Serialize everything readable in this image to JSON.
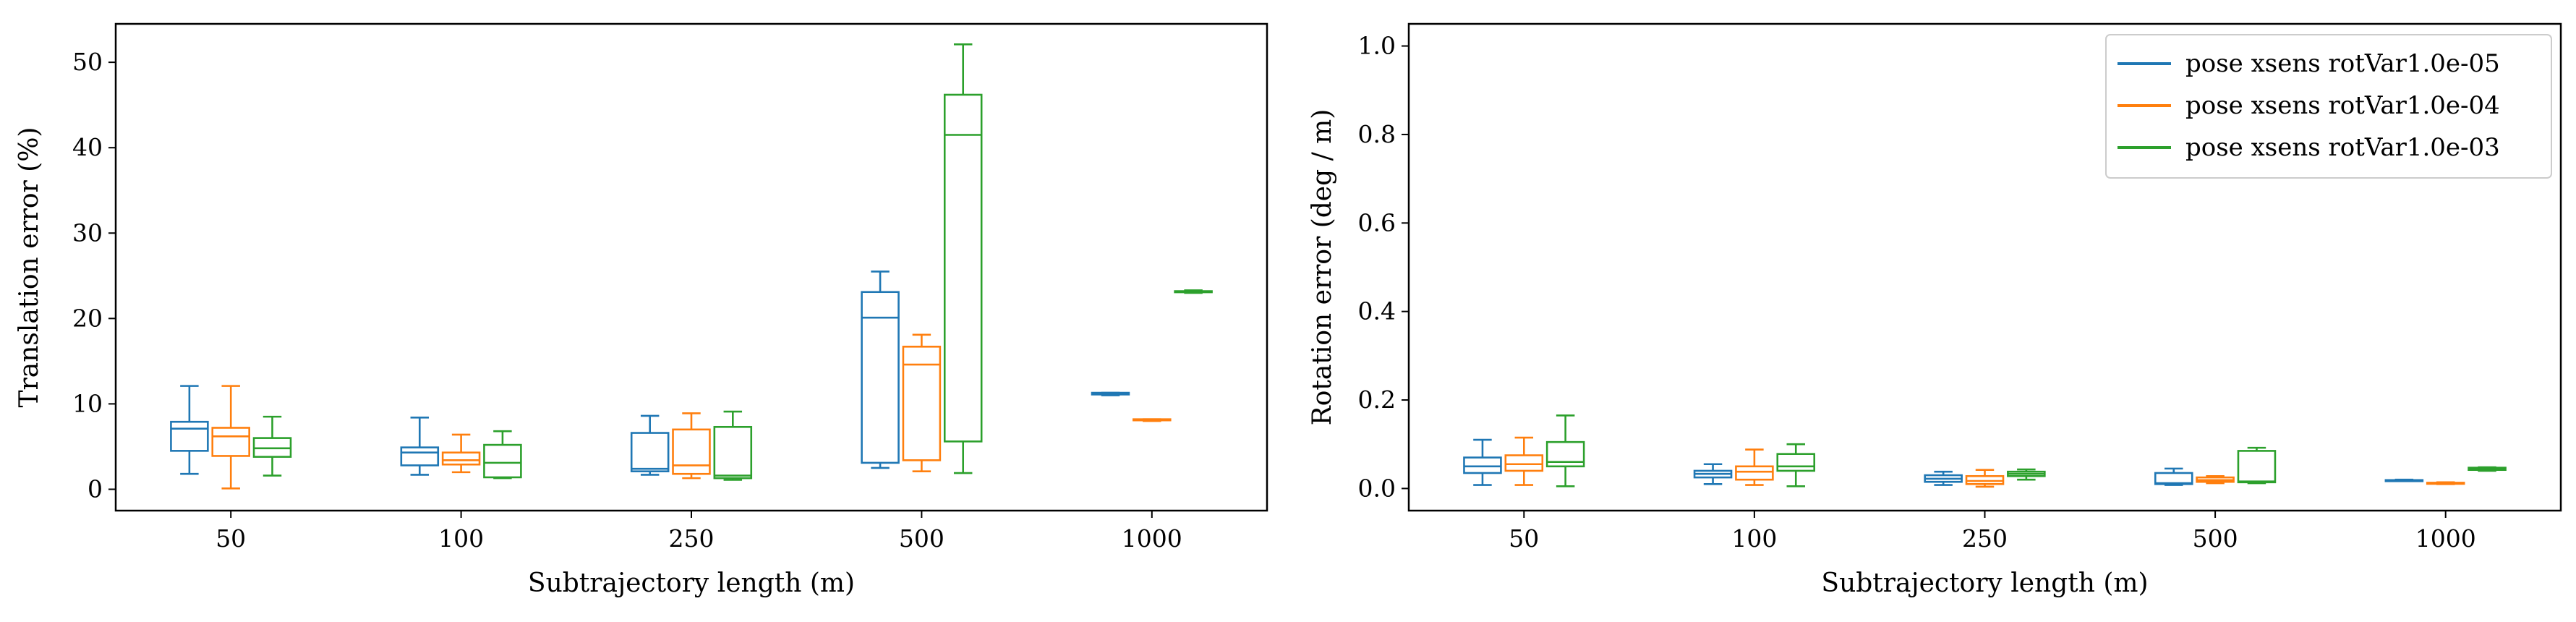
{
  "chart_data": [
    {
      "type": "box",
      "categories": [
        "50",
        "100",
        "250",
        "500",
        "1000"
      ],
      "xlabel": "Subtrajectory length (m)",
      "ylabel": "Translation error (%)",
      "ylim": [
        -2.5,
        54.5
      ],
      "yticks": [
        "0",
        "10",
        "20",
        "30",
        "40",
        "50"
      ],
      "grid": false,
      "series": [
        {
          "color": "#1f77b4",
          "boxes": [
            {
              "whislo": 1.8,
              "q1": 4.5,
              "med": 7.1,
              "q3": 7.9,
              "whishi": 12.1
            },
            {
              "whislo": 1.7,
              "q1": 2.8,
              "med": 4.3,
              "q3": 4.9,
              "whishi": 8.4
            },
            {
              "whislo": 1.7,
              "q1": 2.1,
              "med": 2.4,
              "q3": 6.6,
              "whishi": 8.6
            },
            {
              "whislo": 2.5,
              "q1": 3.1,
              "med": 20.1,
              "q3": 23.1,
              "whishi": 25.5
            },
            {
              "whislo": 11.0,
              "q1": 11.1,
              "med": 11.2,
              "q3": 11.3,
              "whishi": 11.3
            }
          ]
        },
        {
          "color": "#ff7f0e",
          "boxes": [
            {
              "whislo": 0.1,
              "q1": 3.9,
              "med": 6.2,
              "q3": 7.2,
              "whishi": 12.1
            },
            {
              "whislo": 2.0,
              "q1": 2.9,
              "med": 3.4,
              "q3": 4.3,
              "whishi": 6.4
            },
            {
              "whislo": 1.3,
              "q1": 1.8,
              "med": 2.8,
              "q3": 7.0,
              "whishi": 8.9
            },
            {
              "whislo": 2.1,
              "q1": 3.4,
              "med": 14.6,
              "q3": 16.7,
              "whishi": 18.1
            },
            {
              "whislo": 8.0,
              "q1": 8.1,
              "med": 8.1,
              "q3": 8.2,
              "whishi": 8.2
            }
          ]
        },
        {
          "color": "#2ca02c",
          "boxes": [
            {
              "whislo": 1.6,
              "q1": 3.8,
              "med": 4.8,
              "q3": 6.0,
              "whishi": 8.5
            },
            {
              "whislo": 1.3,
              "q1": 1.4,
              "med": 3.1,
              "q3": 5.2,
              "whishi": 6.8
            },
            {
              "whislo": 1.1,
              "q1": 1.3,
              "med": 1.6,
              "q3": 7.3,
              "whishi": 9.1
            },
            {
              "whislo": 1.9,
              "q1": 5.6,
              "med": 41.5,
              "q3": 46.2,
              "whishi": 52.1
            },
            {
              "whislo": 23.0,
              "q1": 23.1,
              "med": 23.1,
              "q3": 23.2,
              "whishi": 23.3
            }
          ]
        }
      ]
    },
    {
      "type": "box",
      "categories": [
        "50",
        "100",
        "250",
        "500",
        "1000"
      ],
      "xlabel": "Subtrajectory length (m)",
      "ylabel": "Rotation error (deg / m)",
      "ylim": [
        -0.05,
        1.05
      ],
      "yticks": [
        "0.0",
        "0.2",
        "0.4",
        "0.6",
        "0.8",
        "1.0"
      ],
      "grid": false,
      "legend": "top-right",
      "series": [
        {
          "name": "pose xsens rotVar1.0e-05",
          "color": "#1f77b4",
          "boxes": [
            {
              "whislo": 0.008,
              "q1": 0.035,
              "med": 0.05,
              "q3": 0.07,
              "whishi": 0.11
            },
            {
              "whislo": 0.01,
              "q1": 0.025,
              "med": 0.033,
              "q3": 0.04,
              "whishi": 0.055
            },
            {
              "whislo": 0.008,
              "q1": 0.015,
              "med": 0.022,
              "q3": 0.03,
              "whishi": 0.038
            },
            {
              "whislo": 0.008,
              "q1": 0.01,
              "med": 0.012,
              "q3": 0.035,
              "whishi": 0.045
            },
            {
              "whislo": 0.017,
              "q1": 0.018,
              "med": 0.018,
              "q3": 0.019,
              "whishi": 0.02
            }
          ]
        },
        {
          "name": "pose xsens rotVar1.0e-04",
          "color": "#ff7f0e",
          "boxes": [
            {
              "whislo": 0.008,
              "q1": 0.04,
              "med": 0.055,
              "q3": 0.075,
              "whishi": 0.115
            },
            {
              "whislo": 0.008,
              "q1": 0.02,
              "med": 0.038,
              "q3": 0.05,
              "whishi": 0.088
            },
            {
              "whislo": 0.004,
              "q1": 0.01,
              "med": 0.017,
              "q3": 0.028,
              "whishi": 0.042
            },
            {
              "whislo": 0.012,
              "q1": 0.015,
              "med": 0.019,
              "q3": 0.025,
              "whishi": 0.028
            },
            {
              "whislo": 0.01,
              "q1": 0.011,
              "med": 0.012,
              "q3": 0.013,
              "whishi": 0.014
            }
          ]
        },
        {
          "name": "pose xsens rotVar1.0e-03",
          "color": "#2ca02c",
          "boxes": [
            {
              "whislo": 0.005,
              "q1": 0.05,
              "med": 0.06,
              "q3": 0.105,
              "whishi": 0.165
            },
            {
              "whislo": 0.005,
              "q1": 0.04,
              "med": 0.05,
              "q3": 0.078,
              "whishi": 0.1
            },
            {
              "whislo": 0.02,
              "q1": 0.028,
              "med": 0.033,
              "q3": 0.038,
              "whishi": 0.043
            },
            {
              "whislo": 0.012,
              "q1": 0.014,
              "med": 0.016,
              "q3": 0.085,
              "whishi": 0.092
            },
            {
              "whislo": 0.04,
              "q1": 0.042,
              "med": 0.045,
              "q3": 0.047,
              "whishi": 0.048
            }
          ]
        }
      ]
    }
  ]
}
